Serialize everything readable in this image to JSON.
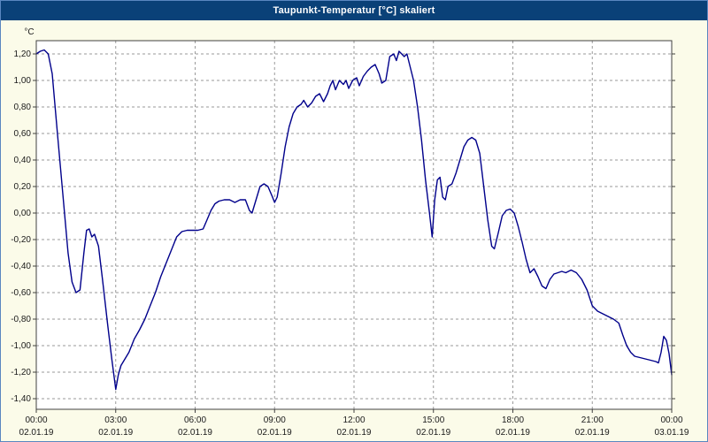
{
  "window": {
    "title": "Taupunkt-Temperatur [°C] skaliert"
  },
  "colors": {
    "titlebar": "#0a4178",
    "background": "#fbfbe9",
    "plot_background": "#ffffff",
    "grid": "#9a9a9a",
    "frame": "#404040",
    "line": "#00008b",
    "title_text": "#ffffff"
  },
  "chart_data": {
    "type": "line",
    "title": "Taupunkt-Temperatur [°C] skaliert",
    "xlabel": "",
    "ylabel": "°C",
    "grid": "dashed",
    "legend": "none",
    "y_axis": {
      "min": -1.48,
      "max": 1.3,
      "tick_start": 1.2,
      "tick_step": 0.2,
      "tick_labels": [
        "1,20",
        "1,00",
        "0,80",
        "0,60",
        "0,40",
        "0,20",
        "0,00",
        "-0,20",
        "-0,40",
        "-0,60",
        "-0,80",
        "-1,00",
        "-1,20",
        "-1,40"
      ]
    },
    "x_axis": {
      "min": 0,
      "max": 24,
      "ticks": [
        {
          "h": 0,
          "time": "00:00",
          "date": "02.01.19"
        },
        {
          "h": 3,
          "time": "03:00",
          "date": "02.01.19"
        },
        {
          "h": 6,
          "time": "06:00",
          "date": "02.01.19"
        },
        {
          "h": 9,
          "time": "09:00",
          "date": "02.01.19"
        },
        {
          "h": 12,
          "time": "12:00",
          "date": "02.01.19"
        },
        {
          "h": 15,
          "time": "15:00",
          "date": "02.01.19"
        },
        {
          "h": 18,
          "time": "18:00",
          "date": "02.01.19"
        },
        {
          "h": 21,
          "time": "21:00",
          "date": "02.01.19"
        },
        {
          "h": 24,
          "time": "00:00",
          "date": "03.01.19"
        }
      ]
    },
    "series": [
      {
        "name": "Taupunkt-Temperatur",
        "color": "#00008b",
        "points": [
          [
            0.0,
            1.2
          ],
          [
            0.15,
            1.22
          ],
          [
            0.3,
            1.23
          ],
          [
            0.45,
            1.2
          ],
          [
            0.6,
            1.05
          ],
          [
            0.8,
            0.6
          ],
          [
            1.0,
            0.15
          ],
          [
            1.2,
            -0.3
          ],
          [
            1.35,
            -0.52
          ],
          [
            1.5,
            -0.6
          ],
          [
            1.65,
            -0.58
          ],
          [
            1.8,
            -0.3
          ],
          [
            1.9,
            -0.13
          ],
          [
            2.0,
            -0.12
          ],
          [
            2.1,
            -0.18
          ],
          [
            2.2,
            -0.16
          ],
          [
            2.35,
            -0.25
          ],
          [
            2.5,
            -0.5
          ],
          [
            2.7,
            -0.85
          ],
          [
            2.85,
            -1.1
          ],
          [
            3.0,
            -1.33
          ],
          [
            3.1,
            -1.22
          ],
          [
            3.2,
            -1.15
          ],
          [
            3.35,
            -1.1
          ],
          [
            3.5,
            -1.05
          ],
          [
            3.7,
            -0.95
          ],
          [
            3.9,
            -0.88
          ],
          [
            4.1,
            -0.8
          ],
          [
            4.3,
            -0.7
          ],
          [
            4.5,
            -0.6
          ],
          [
            4.7,
            -0.48
          ],
          [
            4.9,
            -0.38
          ],
          [
            5.1,
            -0.28
          ],
          [
            5.3,
            -0.18
          ],
          [
            5.5,
            -0.14
          ],
          [
            5.7,
            -0.13
          ],
          [
            5.9,
            -0.13
          ],
          [
            6.1,
            -0.13
          ],
          [
            6.3,
            -0.12
          ],
          [
            6.45,
            -0.05
          ],
          [
            6.6,
            0.02
          ],
          [
            6.75,
            0.07
          ],
          [
            6.9,
            0.09
          ],
          [
            7.1,
            0.1
          ],
          [
            7.3,
            0.1
          ],
          [
            7.5,
            0.08
          ],
          [
            7.7,
            0.1
          ],
          [
            7.9,
            0.1
          ],
          [
            8.05,
            0.02
          ],
          [
            8.15,
            0.0
          ],
          [
            8.3,
            0.1
          ],
          [
            8.45,
            0.2
          ],
          [
            8.6,
            0.22
          ],
          [
            8.75,
            0.2
          ],
          [
            8.9,
            0.13
          ],
          [
            9.0,
            0.08
          ],
          [
            9.1,
            0.12
          ],
          [
            9.25,
            0.3
          ],
          [
            9.4,
            0.5
          ],
          [
            9.55,
            0.65
          ],
          [
            9.7,
            0.75
          ],
          [
            9.85,
            0.8
          ],
          [
            10.0,
            0.82
          ],
          [
            10.1,
            0.85
          ],
          [
            10.25,
            0.8
          ],
          [
            10.4,
            0.83
          ],
          [
            10.55,
            0.88
          ],
          [
            10.7,
            0.9
          ],
          [
            10.85,
            0.84
          ],
          [
            11.0,
            0.9
          ],
          [
            11.1,
            0.96
          ],
          [
            11.2,
            1.0
          ],
          [
            11.3,
            0.93
          ],
          [
            11.45,
            1.0
          ],
          [
            11.6,
            0.97
          ],
          [
            11.7,
            1.0
          ],
          [
            11.8,
            0.94
          ],
          [
            11.95,
            1.0
          ],
          [
            12.1,
            1.02
          ],
          [
            12.2,
            0.96
          ],
          [
            12.35,
            1.03
          ],
          [
            12.5,
            1.07
          ],
          [
            12.65,
            1.1
          ],
          [
            12.8,
            1.12
          ],
          [
            12.95,
            1.05
          ],
          [
            13.05,
            0.98
          ],
          [
            13.2,
            1.0
          ],
          [
            13.35,
            1.18
          ],
          [
            13.5,
            1.2
          ],
          [
            13.6,
            1.15
          ],
          [
            13.7,
            1.22
          ],
          [
            13.8,
            1.2
          ],
          [
            13.9,
            1.18
          ],
          [
            14.0,
            1.2
          ],
          [
            14.1,
            1.12
          ],
          [
            14.25,
            1.0
          ],
          [
            14.4,
            0.8
          ],
          [
            14.55,
            0.55
          ],
          [
            14.7,
            0.25
          ],
          [
            14.85,
            0.0
          ],
          [
            14.95,
            -0.18
          ],
          [
            15.05,
            0.1
          ],
          [
            15.15,
            0.25
          ],
          [
            15.25,
            0.27
          ],
          [
            15.35,
            0.12
          ],
          [
            15.45,
            0.1
          ],
          [
            15.55,
            0.2
          ],
          [
            15.7,
            0.22
          ],
          [
            15.85,
            0.3
          ],
          [
            16.0,
            0.4
          ],
          [
            16.15,
            0.5
          ],
          [
            16.3,
            0.55
          ],
          [
            16.45,
            0.57
          ],
          [
            16.6,
            0.55
          ],
          [
            16.75,
            0.45
          ],
          [
            16.9,
            0.2
          ],
          [
            17.05,
            -0.05
          ],
          [
            17.2,
            -0.25
          ],
          [
            17.3,
            -0.27
          ],
          [
            17.45,
            -0.15
          ],
          [
            17.6,
            -0.02
          ],
          [
            17.75,
            0.02
          ],
          [
            17.9,
            0.03
          ],
          [
            18.05,
            0.0
          ],
          [
            18.2,
            -0.1
          ],
          [
            18.35,
            -0.22
          ],
          [
            18.5,
            -0.35
          ],
          [
            18.65,
            -0.45
          ],
          [
            18.8,
            -0.42
          ],
          [
            18.95,
            -0.48
          ],
          [
            19.1,
            -0.55
          ],
          [
            19.25,
            -0.57
          ],
          [
            19.4,
            -0.5
          ],
          [
            19.55,
            -0.46
          ],
          [
            19.7,
            -0.45
          ],
          [
            19.85,
            -0.44
          ],
          [
            20.0,
            -0.45
          ],
          [
            20.2,
            -0.43
          ],
          [
            20.4,
            -0.45
          ],
          [
            20.6,
            -0.5
          ],
          [
            20.8,
            -0.58
          ],
          [
            21.0,
            -0.7
          ],
          [
            21.2,
            -0.74
          ],
          [
            21.4,
            -0.76
          ],
          [
            21.6,
            -0.78
          ],
          [
            21.8,
            -0.8
          ],
          [
            22.0,
            -0.83
          ],
          [
            22.15,
            -0.92
          ],
          [
            22.3,
            -1.0
          ],
          [
            22.45,
            -1.05
          ],
          [
            22.6,
            -1.08
          ],
          [
            22.8,
            -1.09
          ],
          [
            23.0,
            -1.1
          ],
          [
            23.2,
            -1.11
          ],
          [
            23.4,
            -1.12
          ],
          [
            23.5,
            -1.13
          ],
          [
            23.6,
            -1.05
          ],
          [
            23.7,
            -0.93
          ],
          [
            23.8,
            -0.96
          ],
          [
            23.9,
            -1.06
          ],
          [
            24.0,
            -1.22
          ]
        ]
      }
    ]
  }
}
